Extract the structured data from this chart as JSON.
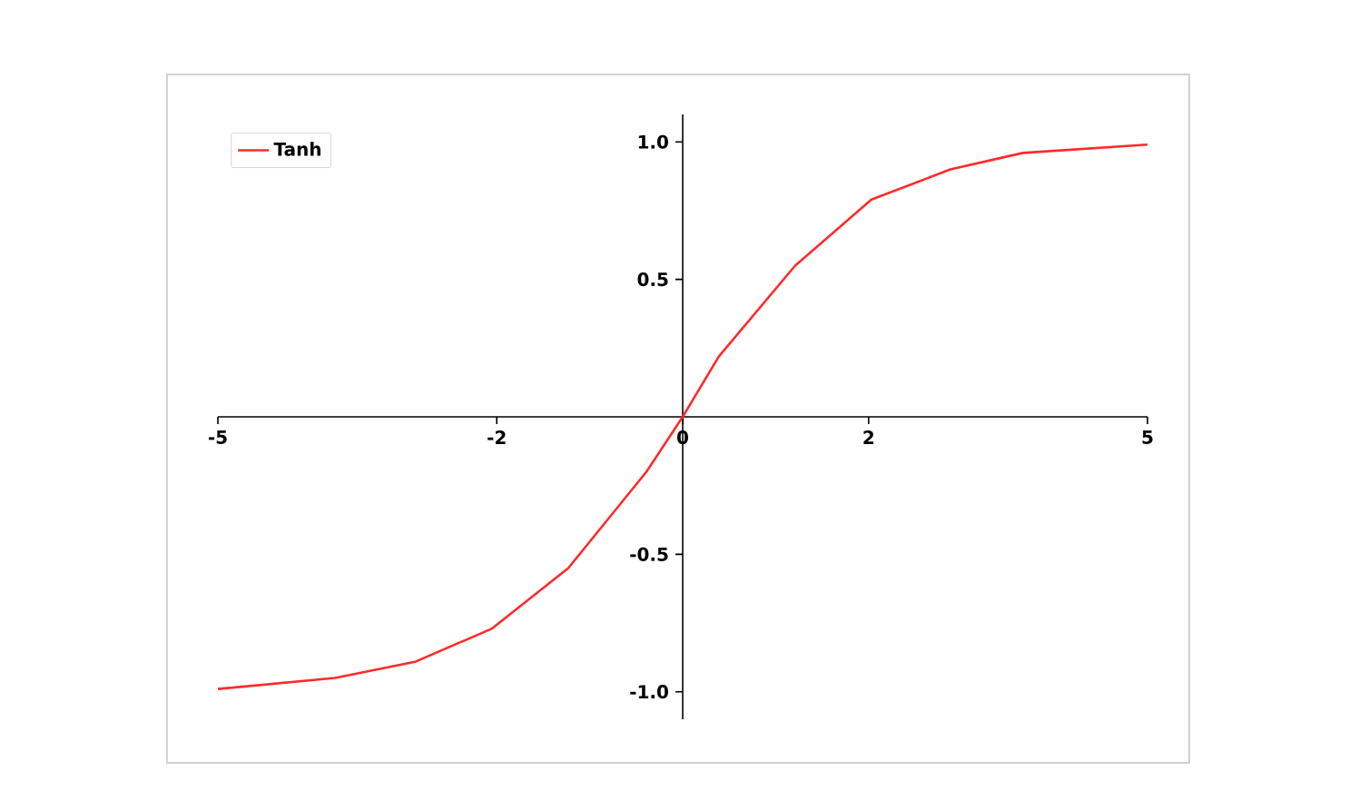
{
  "chart_data": {
    "type": "line",
    "x": [
      -5,
      -3.74,
      -2.87,
      -2.05,
      -1.23,
      -0.39,
      0,
      0.39,
      1.21,
      2.03,
      2.88,
      3.66,
      5
    ],
    "series": [
      {
        "name": "Tanh",
        "color": "#ff2a2a",
        "values": [
          -0.99,
          -0.95,
          -0.89,
          -0.77,
          -0.55,
          -0.2,
          0,
          0.22,
          0.55,
          0.79,
          0.9,
          0.96,
          0.99
        ]
      }
    ],
    "xlim": [
      -5,
      5
    ],
    "ylim": [
      -1.1,
      1.1
    ],
    "xticks": [
      -5,
      -2,
      0,
      2,
      5
    ],
    "yticks": [
      {
        "value": -1,
        "label": "-1.0"
      },
      {
        "value": -0.5,
        "label": "-0.5"
      },
      {
        "value": 0.5,
        "label": "0.5"
      },
      {
        "value": 1,
        "label": "1.0"
      }
    ],
    "legend": "top left",
    "grid": false
  }
}
